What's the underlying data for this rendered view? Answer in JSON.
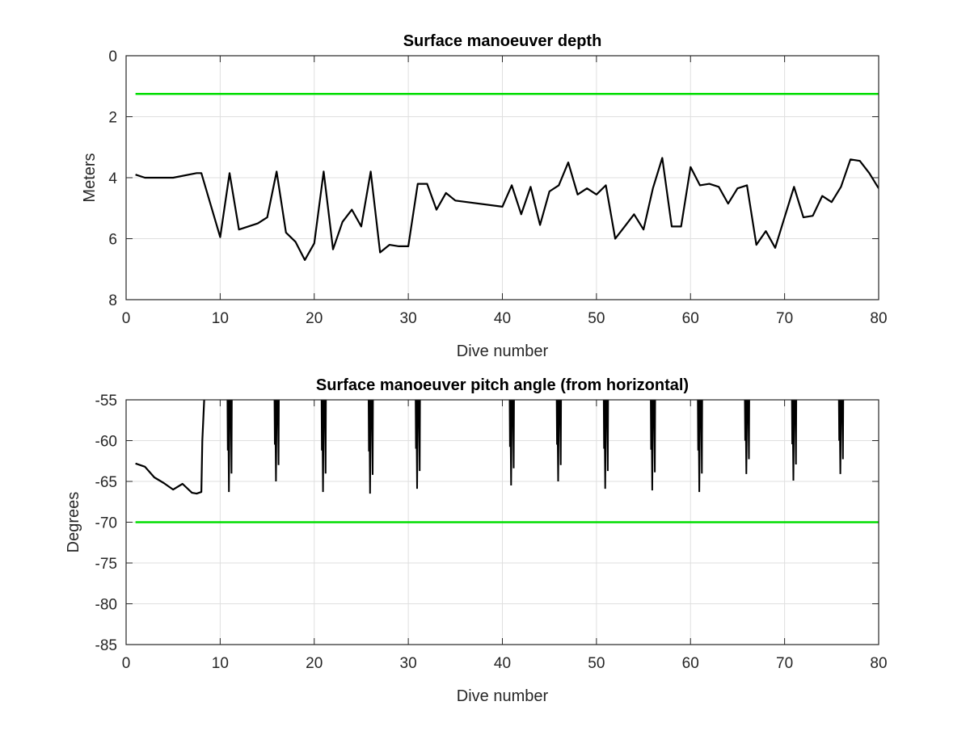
{
  "chart_data": [
    {
      "type": "line",
      "title": "Surface manoeuver depth",
      "xlabel": "Dive number",
      "ylabel": "Meters",
      "xlim": [
        0,
        80
      ],
      "ylim": [
        0,
        8
      ],
      "y_reversed": true,
      "grid": true,
      "xticks": [
        "0",
        "10",
        "20",
        "30",
        "40",
        "50",
        "60",
        "70",
        "80"
      ],
      "yticks": [
        "0",
        "2",
        "4",
        "6",
        "8"
      ],
      "reference_line": {
        "y": 1.25,
        "color": "#00dd00"
      },
      "series": [
        {
          "color": "#000000",
          "points": [
            [
              1,
              3.9
            ],
            [
              2,
              4.0
            ],
            [
              5,
              4.0
            ],
            [
              7.5,
              3.85
            ],
            [
              8,
              3.85
            ],
            [
              10,
              5.95
            ],
            [
              11,
              3.85
            ],
            [
              12,
              5.7
            ],
            [
              14,
              5.5
            ],
            [
              15,
              5.3
            ],
            [
              16,
              3.8
            ],
            [
              17,
              5.8
            ],
            [
              18,
              6.1
            ],
            [
              19,
              6.7
            ],
            [
              20,
              6.15
            ],
            [
              21,
              3.8
            ],
            [
              22,
              6.35
            ],
            [
              23,
              5.45
            ],
            [
              24,
              5.05
            ],
            [
              25,
              5.6
            ],
            [
              26,
              3.8
            ],
            [
              27,
              6.45
            ],
            [
              28,
              6.2
            ],
            [
              29,
              6.25
            ],
            [
              30,
              6.25
            ],
            [
              31,
              4.2
            ],
            [
              32,
              4.2
            ],
            [
              33,
              5.05
            ],
            [
              34,
              4.5
            ],
            [
              35,
              4.75
            ],
            [
              40,
              4.95
            ],
            [
              41,
              4.25
            ],
            [
              42,
              5.2
            ],
            [
              43,
              4.3
            ],
            [
              44,
              5.55
            ],
            [
              45,
              4.45
            ],
            [
              46,
              4.25
            ],
            [
              47,
              3.5
            ],
            [
              48,
              4.55
            ],
            [
              49,
              4.35
            ],
            [
              50,
              4.55
            ],
            [
              51,
              4.25
            ],
            [
              52,
              6.0
            ],
            [
              53,
              5.6
            ],
            [
              54,
              5.2
            ],
            [
              55,
              5.7
            ],
            [
              56,
              4.35
            ],
            [
              57,
              3.35
            ],
            [
              58,
              5.6
            ],
            [
              59,
              5.6
            ],
            [
              60,
              3.65
            ],
            [
              61,
              4.25
            ],
            [
              62,
              4.2
            ],
            [
              63,
              4.3
            ],
            [
              64,
              4.85
            ],
            [
              65,
              4.35
            ],
            [
              66,
              4.25
            ],
            [
              67,
              6.2
            ],
            [
              68,
              5.75
            ],
            [
              69,
              6.3
            ],
            [
              70,
              5.3
            ],
            [
              71,
              4.3
            ],
            [
              72,
              5.3
            ],
            [
              73,
              5.25
            ],
            [
              74,
              4.6
            ],
            [
              75,
              4.8
            ],
            [
              76,
              4.3
            ],
            [
              77,
              3.4
            ],
            [
              78,
              3.45
            ],
            [
              79,
              3.85
            ],
            [
              80,
              4.35
            ]
          ]
        }
      ]
    },
    {
      "type": "line",
      "title": "Surface manoeuver pitch angle (from horizontal)",
      "xlabel": "Dive number",
      "ylabel": "Degrees",
      "xlim": [
        0,
        80
      ],
      "ylim": [
        -85,
        -55
      ],
      "y_reversed": false,
      "grid": true,
      "xticks": [
        "0",
        "10",
        "20",
        "30",
        "40",
        "50",
        "60",
        "70",
        "80"
      ],
      "yticks": [
        "-55",
        "-60",
        "-65",
        "-70",
        "-75",
        "-80",
        "-85"
      ],
      "reference_line": {
        "y": -70,
        "color": "#00dd00"
      },
      "series": [
        {
          "color": "#000000",
          "points": [
            [
              1,
              -62.8
            ],
            [
              2,
              -63.2
            ],
            [
              3,
              -64.5
            ],
            [
              4,
              -65.2
            ],
            [
              5,
              -66.0
            ],
            [
              6,
              -65.3
            ],
            [
              7,
              -66.4
            ],
            [
              7.5,
              -66.5
            ],
            [
              8,
              -66.3
            ],
            [
              8.1,
              -60
            ],
            [
              8.3,
              -55
            ]
          ]
        },
        {
          "color": "#000000",
          "spikes": [
            {
              "x": 11,
              "min": -66.3
            },
            {
              "x": 16,
              "min": -65.0
            },
            {
              "x": 21,
              "min": -66.3
            },
            {
              "x": 26,
              "min": -66.5
            },
            {
              "x": 31,
              "min": -65.9
            },
            {
              "x": 41,
              "min": -65.5
            },
            {
              "x": 46,
              "min": -65.0
            },
            {
              "x": 51,
              "min": -65.9
            },
            {
              "x": 56,
              "min": -66.1
            },
            {
              "x": 61,
              "min": -66.3
            },
            {
              "x": 66,
              "min": -64.1
            },
            {
              "x": 71,
              "min": -64.9
            },
            {
              "x": 76,
              "min": -64.1
            }
          ]
        }
      ]
    }
  ]
}
